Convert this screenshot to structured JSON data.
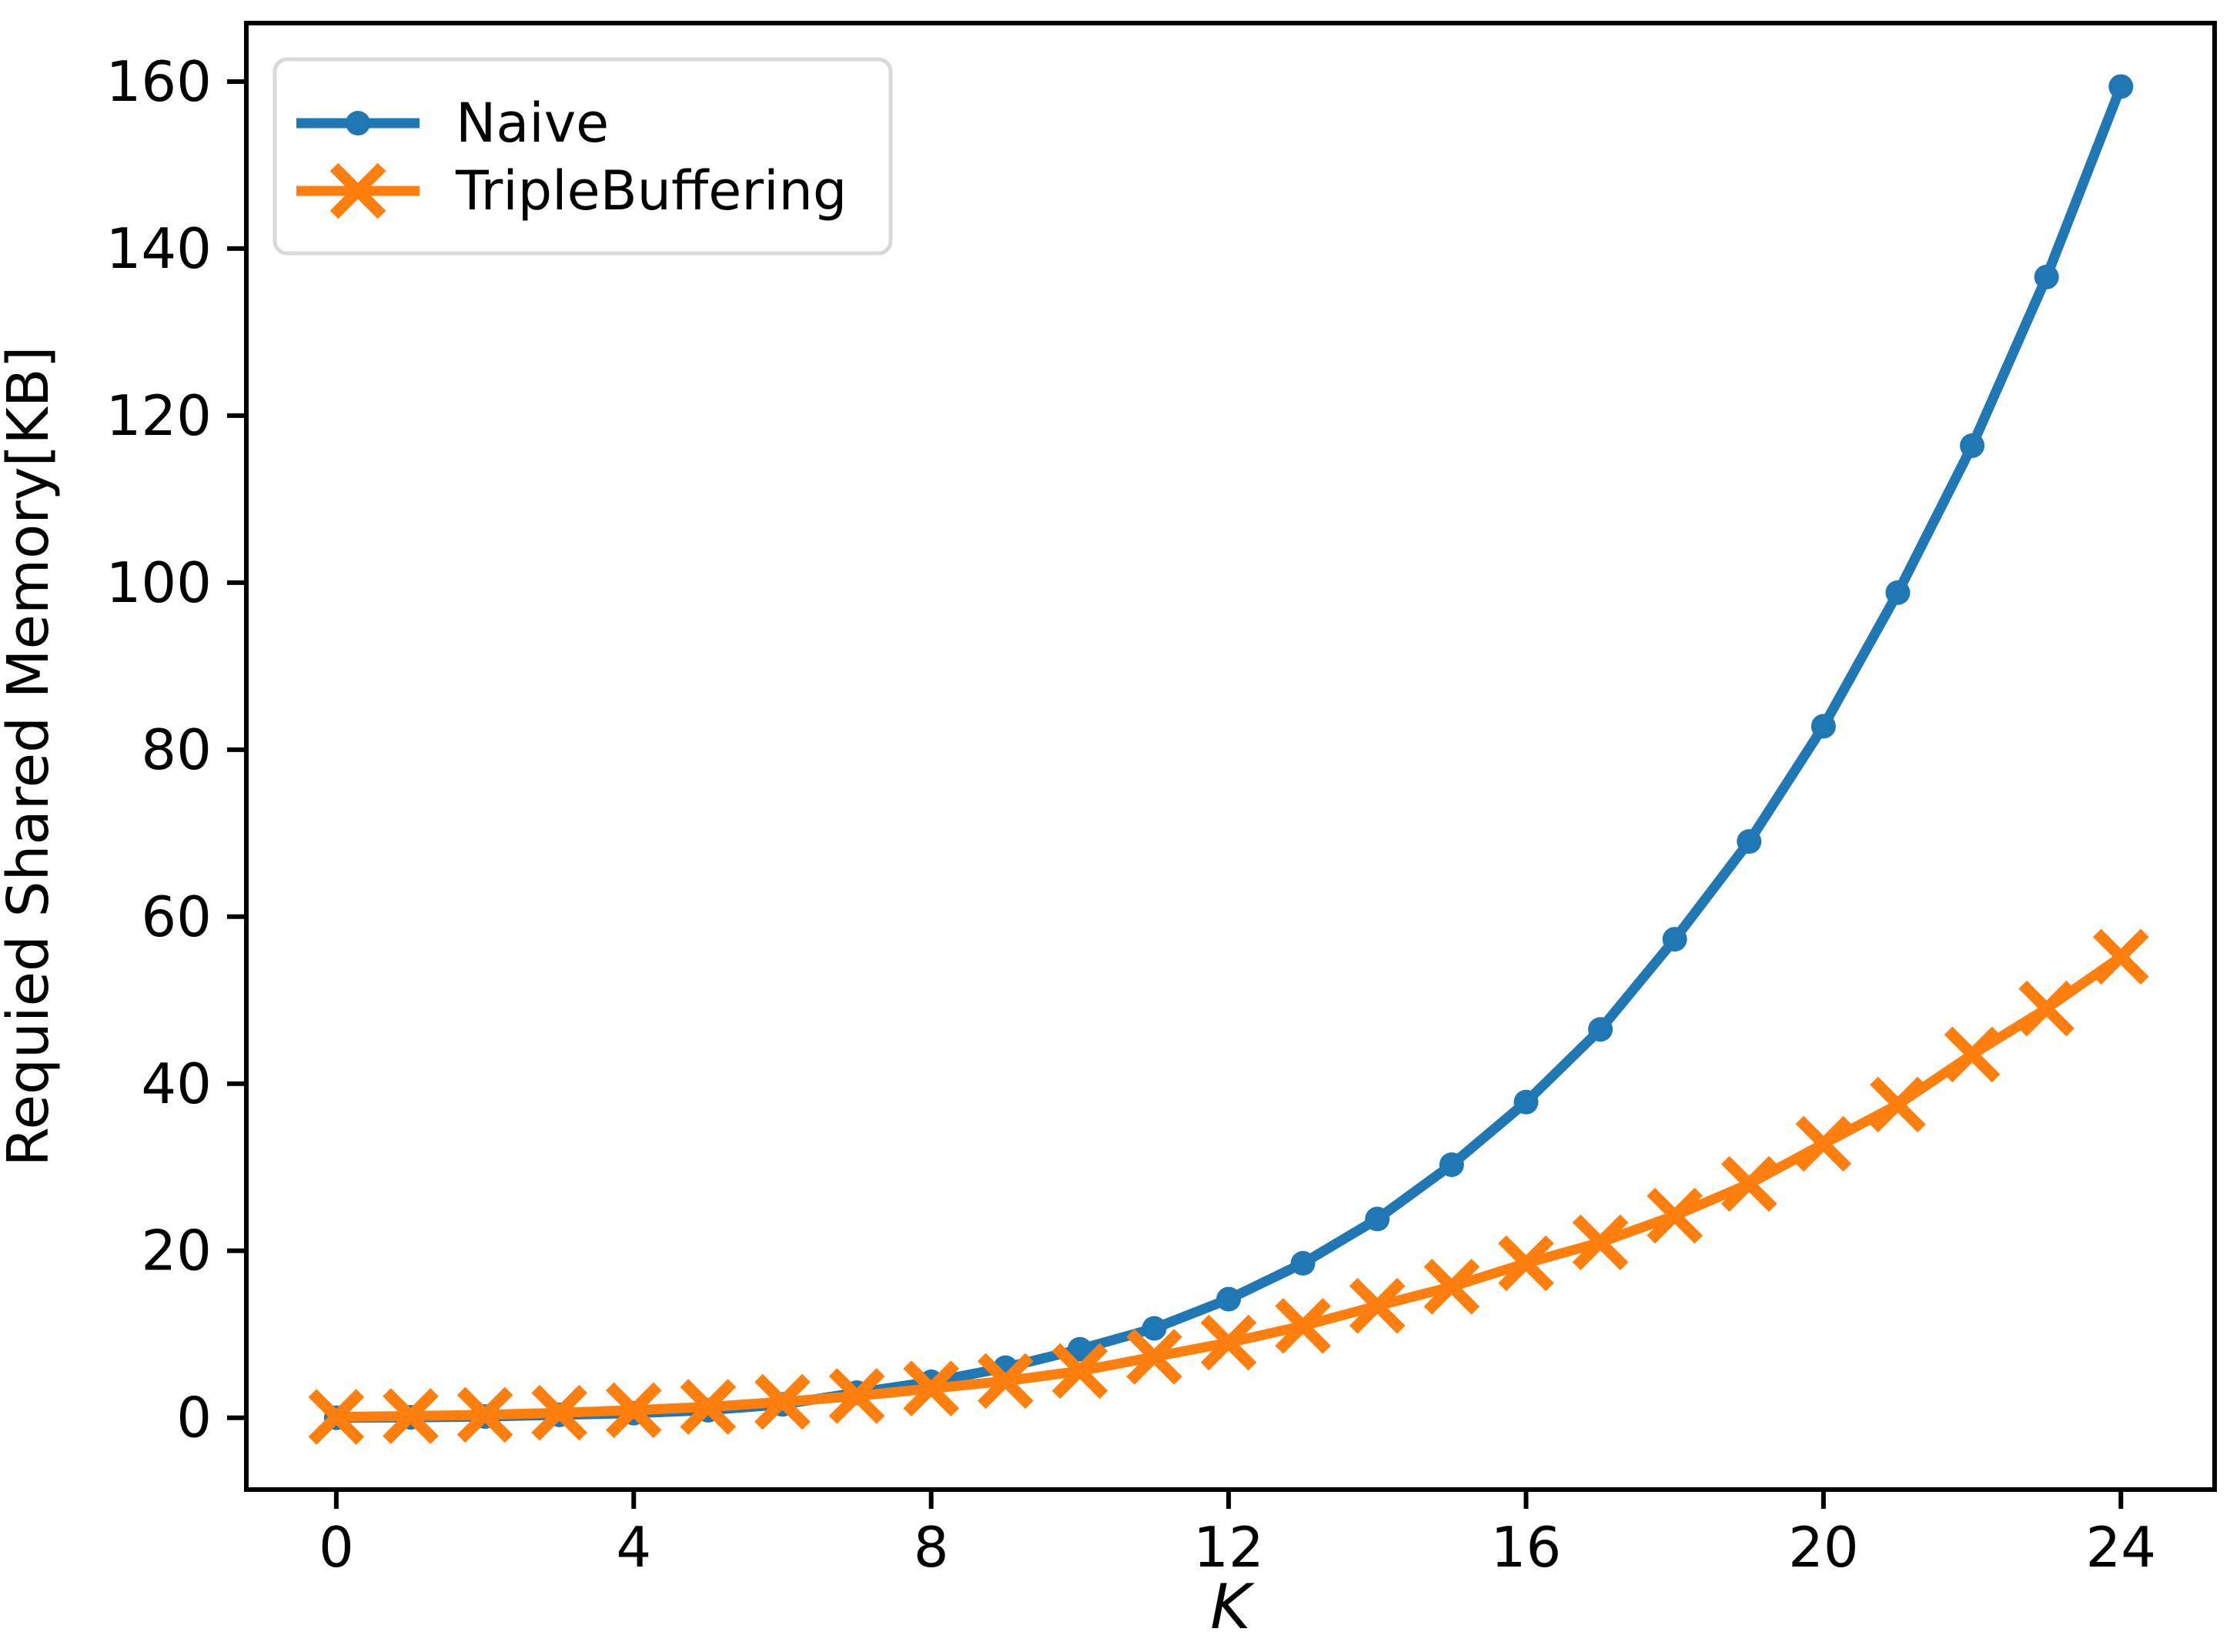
{
  "chart_data": {
    "type": "line",
    "title": "",
    "xlabel": "K",
    "ylabel": "Requied Shared Memory[KB]",
    "x": [
      0,
      1,
      2,
      3,
      4,
      5,
      6,
      7,
      8,
      9,
      10,
      11,
      12,
      13,
      14,
      15,
      16,
      17,
      18,
      19,
      20,
      21,
      22,
      23,
      24
    ],
    "series": [
      {
        "name": "Naive",
        "color": "#1f77b4",
        "marker": "circle",
        "values": [
          0.0,
          0.05,
          0.15,
          0.35,
          0.55,
          0.9,
          1.6,
          3.0,
          4.3,
          6.0,
          8.2,
          10.7,
          14.2,
          18.5,
          23.8,
          30.3,
          37.8,
          46.5,
          57.3,
          69.0,
          82.8,
          98.8,
          116.4,
          136.6,
          159.4
        ]
      },
      {
        "name": "TripleBuffering",
        "color": "#ff7f0e",
        "marker": "x",
        "values": [
          0.1,
          0.2,
          0.35,
          0.6,
          0.9,
          1.3,
          1.9,
          2.6,
          3.5,
          4.4,
          5.6,
          7.3,
          9.0,
          11.0,
          13.4,
          15.7,
          18.5,
          21.0,
          24.2,
          28.0,
          32.8,
          37.5,
          43.5,
          49.0,
          55.2
        ]
      }
    ],
    "xticks": [
      0,
      4,
      8,
      12,
      16,
      20,
      24
    ],
    "yticks": [
      0,
      20,
      40,
      60,
      80,
      100,
      120,
      140,
      160
    ],
    "xlim": [
      -1.21,
      25.26
    ],
    "ylim": [
      -8.6,
      167.0
    ],
    "grid": false,
    "legend_position": "upper-left",
    "legend_labels": [
      "Naive",
      "TripleBuffering"
    ]
  },
  "styles": {
    "background_color": "#ffffff",
    "spine_color": "#000000",
    "text_color": "#000000",
    "legend_border_color": "#d9d9d9",
    "legend_background": "#ffffff",
    "naive_color": "#1f77b4",
    "triplebuffering_color": "#ff7f0e"
  }
}
